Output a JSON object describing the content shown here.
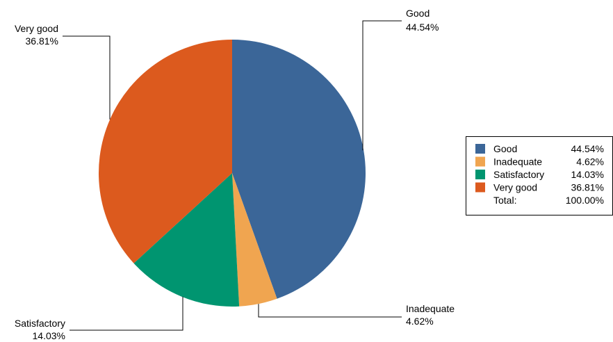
{
  "chart_data": {
    "type": "pie",
    "slices": [
      {
        "label": "Good",
        "value": 44.54,
        "display": "44.54%",
        "color": "#3b6698"
      },
      {
        "label": "Inadequate",
        "value": 4.62,
        "display": "4.62%",
        "color": "#f0a550"
      },
      {
        "label": "Satisfactory",
        "value": 14.03,
        "display": "14.03%",
        "color": "#009570"
      },
      {
        "label": "Very good",
        "value": 36.81,
        "display": "36.81%",
        "color": "#dc5a1e"
      }
    ],
    "legend": {
      "placement": "right",
      "total_label": "Total:",
      "total_value": "100.00%"
    },
    "start_angle_deg": 0,
    "direction": "clockwise"
  }
}
